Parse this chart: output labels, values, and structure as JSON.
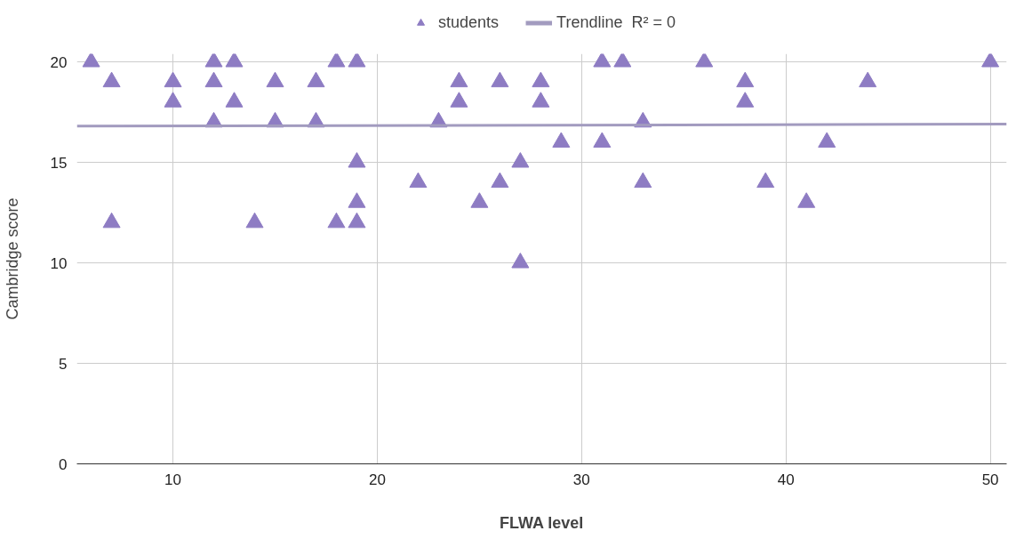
{
  "chart_data": {
    "type": "scatter",
    "xlabel": "FLWA level",
    "ylabel": "Cambridge score",
    "marker": "triangle",
    "legend": "top",
    "grid": true,
    "xlim": [
      5.3,
      50.8
    ],
    "xticks": [
      10,
      20,
      30,
      40,
      50
    ],
    "ylim": [
      0,
      20.4
    ],
    "yticks": [
      0,
      5,
      10,
      15,
      20
    ],
    "series": [
      {
        "name": "students",
        "color": "#8e7cc3",
        "x": [
          6,
          7,
          7,
          10,
          10,
          12,
          12,
          12,
          13,
          13,
          14,
          15,
          15,
          17,
          17,
          18,
          18,
          19,
          19,
          19,
          19,
          22,
          23,
          24,
          24,
          25,
          26,
          26,
          27,
          27,
          28,
          28,
          29,
          31,
          31,
          32,
          33,
          33,
          36,
          38,
          38,
          39,
          41,
          42,
          44,
          50
        ],
        "values": [
          20,
          19,
          12,
          19,
          18,
          20,
          19,
          17,
          20,
          18,
          12,
          19,
          17,
          19,
          17,
          20,
          12,
          20,
          15,
          13,
          12,
          14,
          17,
          19,
          18,
          13,
          19,
          14,
          15,
          10,
          19,
          18,
          16,
          20,
          16,
          20,
          17,
          14,
          20,
          19,
          18,
          14,
          13,
          16,
          19,
          20
        ]
      },
      {
        "name": "Trendline  R² = 0",
        "type": "line",
        "marker": "none",
        "color": "#a29bbf",
        "x": [
          5.3,
          50.8
        ],
        "values": [
          16.8,
          16.9
        ]
      }
    ]
  }
}
